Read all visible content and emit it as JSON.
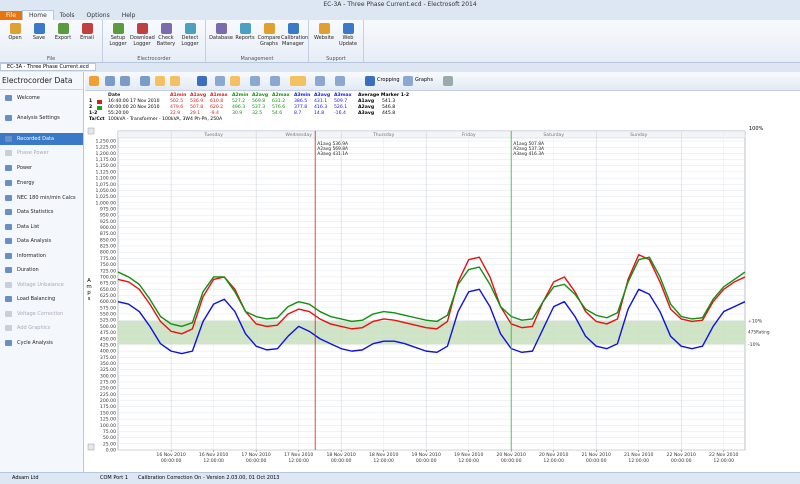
{
  "window": {
    "title": "EC-3A - Three Phase Current.ecd - Electrosoft 2014",
    "tabs": [
      "File",
      "Home",
      "Tools",
      "Options",
      "Help"
    ],
    "document_tab": "EC-3A - Three Phase Current.ecd"
  },
  "ribbon": {
    "groups": [
      {
        "label": "File",
        "buttons": [
          "Open",
          "Save",
          "Export",
          "Email"
        ]
      },
      {
        "label": "Electrocorder",
        "buttons": [
          "Setup Logger",
          "Download Logger",
          "Check Battery",
          "Detect Logger"
        ]
      },
      {
        "label": "Management",
        "buttons": [
          "Database",
          "Reports",
          "Compare Graphs",
          "Calibration Manager"
        ]
      },
      {
        "label": "Support",
        "buttons": [
          "Website",
          "Web Update"
        ]
      }
    ]
  },
  "sidebar": {
    "title": "Electrocorder Data",
    "items": [
      "Welcome",
      "Analysis Settings",
      "Recorded Data",
      "Phase Power",
      "Power",
      "Energy",
      "NEC 180 min/min Calcs",
      "Data Statistics",
      "Data List",
      "Data Analysis",
      "Information",
      "Duration",
      "Voltage Unbalance",
      "Load Balancing",
      "Voltage Correction",
      "Add Graphics",
      "Cycle Analysis"
    ]
  },
  "toolbar": {
    "cropping": "Cropping",
    "graphs": "Graphs"
  },
  "marker_table": {
    "headers": [
      "Date",
      "A1min",
      "A1avg",
      "A1max",
      "A2min",
      "A2avg",
      "A2max",
      "A3min",
      "A3avg",
      "A3max"
    ],
    "rows": [
      {
        "label": "1",
        "date": "16:40:00 17 Nov 2010",
        "values": [
          "502.5",
          "536.9",
          "610.8",
          "527.2",
          "569.8",
          "631.2",
          "386.5",
          "431.1",
          "509.7"
        ]
      },
      {
        "label": "2",
        "date": "00:00:00 20 Nov 2010",
        "values": [
          "479.6",
          "507.8",
          "620.2",
          "496.3",
          "537.3",
          "576.6",
          "377.8",
          "416.3",
          "526.1"
        ]
      },
      {
        "label": "1-2",
        "date": "55:20:00",
        "values": [
          "22.9",
          "29.1",
          "-9.4",
          "30.9",
          "32.5",
          "54.6",
          "8.7",
          "14.8",
          "-16.4"
        ]
      }
    ],
    "cct_label": "Ta/Cct",
    "cct": "100kVA - Transformer - 100kVA, 3W4 Ph-Ph, 250A",
    "average": {
      "title": "Average Marker 1-2",
      "rows": [
        [
          "A1avg",
          "541.3"
        ],
        [
          "A2avg",
          "546.8"
        ],
        [
          "A3avg",
          "445.8"
        ]
      ]
    }
  },
  "status": [
    "Adsam Ltd",
    "COM Port 1",
    "Calibration Correction On - Version 2.03.00, 01 Oct 2013"
  ],
  "chart_data": {
    "type": "line",
    "y_label": "Amps",
    "zoom_label": "100%",
    "x": [
      "2010-11-15 09:00",
      "2010-11-15 12:00",
      "2010-11-15 15:00",
      "2010-11-15 18:00",
      "2010-11-15 21:00",
      "2010-11-16 00:00",
      "2010-11-16 03:00",
      "2010-11-16 06:00",
      "2010-11-16 09:00",
      "2010-11-16 12:00",
      "2010-11-16 15:00",
      "2010-11-16 18:00",
      "2010-11-16 21:00",
      "2010-11-17 00:00",
      "2010-11-17 03:00",
      "2010-11-17 06:00",
      "2010-11-17 09:00",
      "2010-11-17 12:00",
      "2010-11-17 15:00",
      "2010-11-17 18:00",
      "2010-11-17 21:00",
      "2010-11-18 00:00",
      "2010-11-18 03:00",
      "2010-11-18 06:00",
      "2010-11-18 09:00",
      "2010-11-18 12:00",
      "2010-11-18 15:00",
      "2010-11-18 18:00",
      "2010-11-18 21:00",
      "2010-11-19 00:00",
      "2010-11-19 03:00",
      "2010-11-19 06:00",
      "2010-11-19 09:00",
      "2010-11-19 12:00",
      "2010-11-19 15:00",
      "2010-11-19 18:00",
      "2010-11-19 21:00",
      "2010-11-20 00:00",
      "2010-11-20 03:00",
      "2010-11-20 06:00",
      "2010-11-20 09:00",
      "2010-11-20 12:00",
      "2010-11-20 15:00",
      "2010-11-20 18:00",
      "2010-11-20 21:00",
      "2010-11-21 00:00",
      "2010-11-21 03:00",
      "2010-11-21 06:00",
      "2010-11-21 09:00",
      "2010-11-21 12:00",
      "2010-11-21 15:00",
      "2010-11-21 18:00",
      "2010-11-21 21:00",
      "2010-11-22 00:00",
      "2010-11-22 03:00",
      "2010-11-22 06:00",
      "2010-11-22 09:00",
      "2010-11-22 12:00",
      "2010-11-22 15:00",
      "2010-11-22 18:00"
    ],
    "series": [
      {
        "color": "#e81010",
        "values": [
          690,
          680,
          650,
          590,
          520,
          480,
          470,
          490,
          620,
          690,
          700,
          650,
          560,
          510,
          500,
          505,
          550,
          570,
          560,
          530,
          510,
          500,
          490,
          495,
          520,
          530,
          525,
          515,
          505,
          495,
          490,
          520,
          680,
          770,
          780,
          700,
          580,
          510,
          495,
          500,
          600,
          680,
          700,
          640,
          560,
          520,
          510,
          530,
          690,
          790,
          770,
          680,
          570,
          530,
          520,
          525,
          600,
          650,
          680,
          700
        ]
      },
      {
        "color": "#109010",
        "values": [
          720,
          700,
          670,
          610,
          540,
          510,
          500,
          515,
          640,
          700,
          700,
          640,
          560,
          540,
          530,
          535,
          580,
          600,
          590,
          560,
          540,
          530,
          520,
          525,
          550,
          560,
          555,
          545,
          535,
          525,
          520,
          545,
          670,
          730,
          740,
          670,
          580,
          540,
          525,
          530,
          600,
          660,
          670,
          630,
          570,
          545,
          535,
          555,
          680,
          770,
          780,
          700,
          590,
          540,
          530,
          535,
          610,
          660,
          690,
          720
        ]
      },
      {
        "color": "#1010e0",
        "values": [
          600,
          590,
          560,
          500,
          430,
          400,
          390,
          400,
          520,
          590,
          610,
          560,
          470,
          420,
          405,
          410,
          460,
          500,
          480,
          450,
          430,
          410,
          400,
          405,
          430,
          440,
          440,
          430,
          415,
          400,
          395,
          420,
          560,
          640,
          650,
          580,
          470,
          410,
          395,
          400,
          490,
          580,
          600,
          540,
          460,
          420,
          410,
          430,
          570,
          650,
          630,
          560,
          460,
          420,
          410,
          420,
          500,
          560,
          580,
          600
        ]
      }
    ],
    "xlim": [
      "2010-11-15 09:00",
      "2010-11-22 18:00"
    ],
    "xticks": [
      {
        "value": "2010-11-16 00:00",
        "label": [
          "16 Nov 2010",
          "00:00:00"
        ]
      },
      {
        "value": "2010-11-16 12:00",
        "label": [
          "16 Nov 2010",
          "12:00:00"
        ]
      },
      {
        "value": "2010-11-17 00:00",
        "label": [
          "17 Nov 2010",
          "00:00:00"
        ]
      },
      {
        "value": "2010-11-17 12:00",
        "label": [
          "17 Nov 2010",
          "12:00:00"
        ]
      },
      {
        "value": "2010-11-18 00:00",
        "label": [
          "18 Nov 2010",
          "00:00:00"
        ]
      },
      {
        "value": "2010-11-18 12:00",
        "label": [
          "18 Nov 2010",
          "12:00:00"
        ]
      },
      {
        "value": "2010-11-19 00:00",
        "label": [
          "19 Nov 2010",
          "00:00:00"
        ]
      },
      {
        "value": "2010-11-19 12:00",
        "label": [
          "19 Nov 2010",
          "12:00:00"
        ]
      },
      {
        "value": "2010-11-20 00:00",
        "label": [
          "20 Nov 2010",
          "00:00:00"
        ]
      },
      {
        "value": "2010-11-20 12:00",
        "label": [
          "20 Nov 2010",
          "12:00:00"
        ]
      },
      {
        "value": "2010-11-21 00:00",
        "label": [
          "21 Nov 2010",
          "00:00:00"
        ]
      },
      {
        "value": "2010-11-21 12:00",
        "label": [
          "21 Nov 2010",
          "12:00:00"
        ]
      },
      {
        "value": "2010-11-22 00:00",
        "label": [
          "22 Nov 2010",
          "00:00:00"
        ]
      },
      {
        "value": "2010-11-22 12:00",
        "label": [
          "22 Nov 2010",
          "12:00:00"
        ]
      }
    ],
    "day_labels": [
      {
        "value": "2010-11-16 12:00",
        "label": "Tuesday"
      },
      {
        "value": "2010-11-17 12:00",
        "label": "Wednesday"
      },
      {
        "value": "2010-11-18 12:00",
        "label": "Thursday"
      },
      {
        "value": "2010-11-19 12:00",
        "label": "Friday"
      },
      {
        "value": "2010-11-20 12:00",
        "label": "Saturday"
      },
      {
        "value": "2010-11-21 12:00",
        "label": "Sunday"
      }
    ],
    "ylim": [
      0,
      1250
    ],
    "yticks": [
      {
        "value": 0,
        "label": "0.00"
      },
      {
        "value": 25,
        "label": "25.00"
      },
      {
        "value": 50,
        "label": "50.00"
      },
      {
        "value": 75,
        "label": "75.00"
      },
      {
        "value": 100,
        "label": "100.00"
      },
      {
        "value": 125,
        "label": "125.00"
      },
      {
        "value": 150,
        "label": "150.00"
      },
      {
        "value": 175,
        "label": "175.00"
      },
      {
        "value": 200,
        "label": "200.00"
      },
      {
        "value": 225,
        "label": "225.00"
      },
      {
        "value": 250,
        "label": "250.00"
      },
      {
        "value": 275,
        "label": "275.00"
      },
      {
        "value": 300,
        "label": "300.00"
      },
      {
        "value": 325,
        "label": "325.00"
      },
      {
        "value": 350,
        "label": "350.00"
      },
      {
        "value": 375,
        "label": "375.00"
      },
      {
        "value": 400,
        "label": "400.00"
      },
      {
        "value": 425,
        "label": "425.00"
      },
      {
        "value": 450,
        "label": "450.00"
      },
      {
        "value": 475,
        "label": "475.00"
      },
      {
        "value": 500,
        "label": "500.00"
      },
      {
        "value": 525,
        "label": "525.00"
      },
      {
        "value": 550,
        "label": "550.00"
      },
      {
        "value": 575,
        "label": "575.00"
      },
      {
        "value": 600,
        "label": "600.00"
      },
      {
        "value": 625,
        "label": "625.00"
      },
      {
        "value": 650,
        "label": "650.00"
      },
      {
        "value": 675,
        "label": "675.00"
      },
      {
        "value": 700,
        "label": "700.00"
      },
      {
        "value": 725,
        "label": "725.00"
      },
      {
        "value": 750,
        "label": "750.00"
      },
      {
        "value": 775,
        "label": "775.00"
      },
      {
        "value": 800,
        "label": "800.00"
      },
      {
        "value": 825,
        "label": "825.00"
      },
      {
        "value": 850,
        "label": "850.00"
      },
      {
        "value": 875,
        "label": "875.00"
      },
      {
        "value": 900,
        "label": "900.00"
      },
      {
        "value": 925,
        "label": "925.00"
      },
      {
        "value": 950,
        "label": "950.00"
      },
      {
        "value": 975,
        "label": "975.00"
      },
      {
        "value": 1000,
        "label": "1,000.00"
      },
      {
        "value": 1025,
        "label": "1,025.00"
      },
      {
        "value": 1050,
        "label": "1,050.00"
      },
      {
        "value": 1075,
        "label": "1,075.00"
      },
      {
        "value": 1100,
        "label": "1,100.00"
      },
      {
        "value": 1125,
        "label": "1,125.00"
      },
      {
        "value": 1150,
        "label": "1,150.00"
      },
      {
        "value": 1175,
        "label": "1,175.00"
      },
      {
        "value": 1200,
        "label": "1,200.00"
      },
      {
        "value": 1225,
        "label": "1,225.00"
      },
      {
        "value": 1250,
        "label": "1,250.00"
      }
    ],
    "grid": true,
    "rating": {
      "value": 475,
      "label": "475Rating",
      "upper": 522.5,
      "upper_label": "+10%",
      "lower": 427.5,
      "lower_label": "-10%",
      "color": "#c8dfbd"
    },
    "markers": [
      {
        "x": "2010-11-17 16:40",
        "color": "#e01818",
        "labels": [
          "A1avg 536.9A",
          "A2avg 569.8A",
          "A3avg 431.1A"
        ]
      },
      {
        "x": "2010-11-20 00:00",
        "color": "#20c020",
        "labels": [
          "A1avg 507.8A",
          "A2avg 537.3A",
          "A3avg 416.3A"
        ]
      }
    ]
  }
}
